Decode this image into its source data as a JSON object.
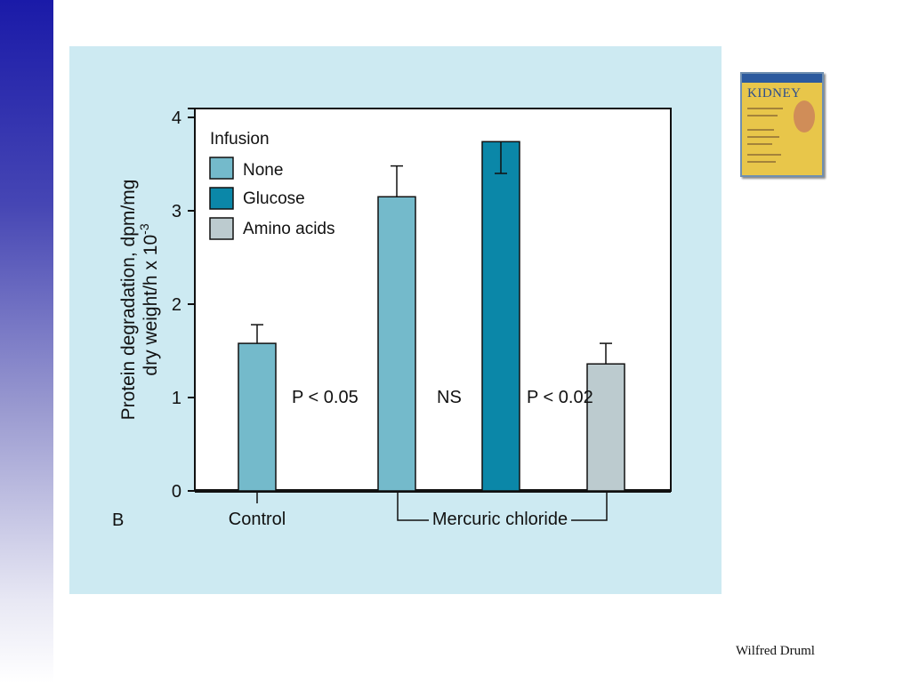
{
  "footer": {
    "author": "Wilfred Druml"
  },
  "book_cover": {
    "title": "KIDNEY"
  },
  "chart_data": {
    "type": "bar",
    "panel_label": "B",
    "ylabel_line1": "Protein degradation, dpm/mg",
    "ylabel_line2": "dry weight/h x 10",
    "ylabel_exponent": "-3",
    "ylim": [
      0,
      4
    ],
    "yticks": [
      "0",
      "1",
      "2",
      "3",
      "4"
    ],
    "legend": {
      "title": "Infusion",
      "entries": [
        {
          "name": "None",
          "color": "#74bacb"
        },
        {
          "name": "Glucose",
          "color": "#0b87a8"
        },
        {
          "name": "Amino acids",
          "color": "#bccbcf"
        }
      ]
    },
    "groups": [
      {
        "label": "Control"
      },
      {
        "label": "Mercuric chloride"
      }
    ],
    "bars": [
      {
        "group": "Control",
        "infusion": "None",
        "value": 1.58,
        "error": 0.2,
        "error_dir": "up"
      },
      {
        "group": "Mercuric chloride",
        "infusion": "None",
        "value": 3.15,
        "error": 0.33,
        "error_dir": "up"
      },
      {
        "group": "Mercuric chloride",
        "infusion": "Glucose",
        "value": 3.74,
        "error": 0.34,
        "error_dir": "down"
      },
      {
        "group": "Mercuric chloride",
        "infusion": "Amino acids",
        "value": 1.36,
        "error": 0.22,
        "error_dir": "up"
      }
    ],
    "annotations": [
      "P < 0.05",
      "NS",
      "P < 0.02"
    ]
  }
}
